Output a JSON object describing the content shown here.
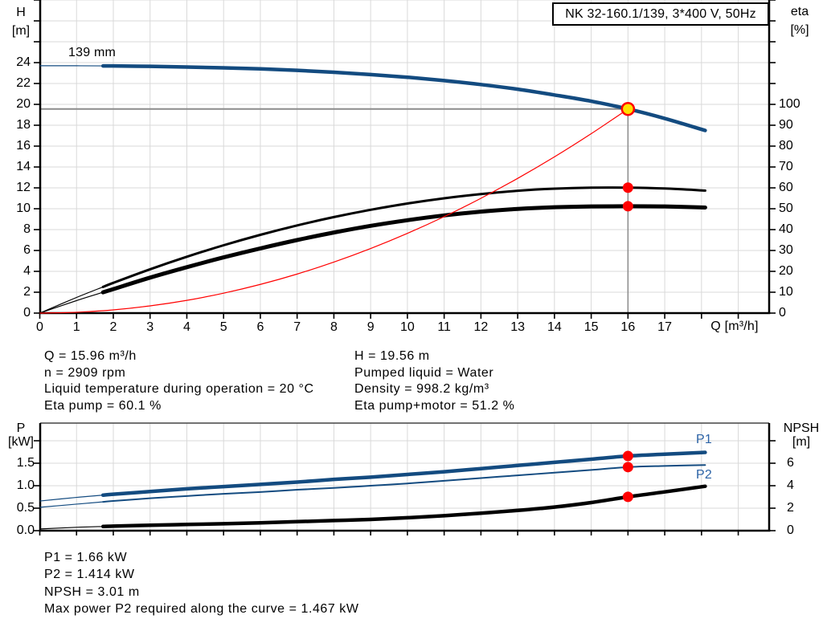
{
  "colors": {
    "curve_blue": "#134b80",
    "label_blue": "#2b62a6",
    "red": "#ff0000",
    "duty_fill": "#ffe000",
    "grid": "#d9d9d9",
    "guide": "#8c8c8c",
    "axis": "#000000"
  },
  "info_top_left": {
    "lines": [
      "Q = 15.96 m³/h",
      "n = 2909 rpm",
      "Liquid temperature during operation = 20 °C",
      "Eta pump = 60.1 %"
    ]
  },
  "info_top_right": {
    "lines": [
      "H = 19.56 m",
      "Pumped liquid = Water",
      "Density = 998.2 kg/m³",
      "Eta pump+motor = 51.2 %"
    ]
  },
  "info_bottom": {
    "lines": [
      "P1 = 1.66 kW",
      "P2 = 1.414 kW",
      "NPSH = 3.01 m",
      "Max power P2 required along the curve = 1.467 kW"
    ]
  },
  "chart_data": [
    {
      "type": "line",
      "title": "NK 32-160.1/139, 3*400 V, 50Hz",
      "x_axis": {
        "label": "Q [m³/h]",
        "ticks": [
          0,
          1,
          2,
          3,
          4,
          5,
          6,
          7,
          8,
          9,
          10,
          11,
          12,
          13,
          14,
          15,
          16,
          17
        ],
        "range": [
          0,
          19.8
        ],
        "grid": true
      },
      "y_left": {
        "name": "H",
        "unit": "[m]",
        "ticks": [
          0,
          2,
          4,
          6,
          8,
          10,
          12,
          14,
          16,
          18,
          20,
          22,
          24
        ],
        "range": [
          0,
          30
        ]
      },
      "y_right": {
        "name": "eta",
        "unit": "[%]",
        "ticks": [
          0,
          10,
          20,
          30,
          40,
          50,
          60,
          70,
          80,
          90,
          100
        ],
        "range": [
          0,
          150
        ]
      },
      "series": [
        {
          "name": "head-curve-139mm",
          "label": "139 mm",
          "axis": "left",
          "color": "#134b80",
          "width": 4.5,
          "thin_until": 1.72,
          "x": [
            0,
            1,
            2,
            3,
            4,
            5,
            6,
            7,
            8,
            9,
            10,
            11,
            12,
            13,
            14,
            15,
            16,
            17,
            18.1
          ],
          "y": [
            23.7,
            23.7,
            23.68,
            23.64,
            23.58,
            23.5,
            23.4,
            23.26,
            23.08,
            22.86,
            22.6,
            22.28,
            21.9,
            21.45,
            20.9,
            20.3,
            19.56,
            18.65,
            17.5
          ]
        },
        {
          "name": "eta-pump-curve",
          "axis": "right",
          "color": "#000000",
          "width": 3,
          "thin_until": 1.72,
          "x": [
            0,
            1,
            2,
            3,
            4,
            5,
            6,
            7,
            8,
            9,
            10,
            11,
            12,
            13,
            14,
            15,
            16,
            17,
            18.1
          ],
          "y": [
            0,
            7.5,
            14.5,
            21,
            27,
            32.5,
            37.5,
            42,
            46,
            49.5,
            52.5,
            55,
            57,
            58.6,
            59.6,
            60.1,
            60.1,
            59.7,
            58.7
          ]
        },
        {
          "name": "eta-pump-motor-curve",
          "axis": "right",
          "color": "#000000",
          "width": 5,
          "thin_until": 1.72,
          "x": [
            0,
            1,
            2,
            3,
            4,
            5,
            6,
            7,
            8,
            9,
            10,
            11,
            12,
            13,
            14,
            15,
            16,
            17,
            18.1
          ],
          "y": [
            0,
            6,
            11.5,
            17,
            22,
            26.7,
            31,
            35,
            38.6,
            41.8,
            44.5,
            46.8,
            48.6,
            49.9,
            50.7,
            51.1,
            51.2,
            51.1,
            50.6
          ]
        },
        {
          "name": "system-curve",
          "axis": "left",
          "color": "#ff0000",
          "width": 1.2,
          "x": [
            0,
            1,
            2,
            3,
            4,
            5,
            6,
            7,
            8,
            9,
            10,
            11,
            12,
            13,
            14,
            15,
            16
          ],
          "y": [
            0,
            0.08,
            0.31,
            0.69,
            1.22,
            1.91,
            2.75,
            3.74,
            4.89,
            6.19,
            7.64,
            9.24,
            11.0,
            12.91,
            14.97,
            17.19,
            19.56
          ]
        }
      ],
      "markers": [
        {
          "name": "duty-point",
          "axis": "left",
          "q": 16,
          "v": 19.56,
          "style": "duty"
        },
        {
          "name": "eta-pump-point",
          "axis": "right",
          "q": 16,
          "v": 60.1,
          "style": "red"
        },
        {
          "name": "eta-pump-motor-point",
          "axis": "right",
          "q": 16,
          "v": 51.2,
          "style": "red"
        }
      ],
      "guides": {
        "q": 16,
        "h": 19.56
      }
    },
    {
      "type": "line",
      "x_axis": {
        "label": "",
        "ticks": [],
        "range": [
          0,
          19.8
        ],
        "grid": true
      },
      "y_left": {
        "name": "P",
        "unit": "[kW]",
        "ticks": [
          0,
          0.5,
          1,
          1.5
        ],
        "tick_labels": [
          "0.0",
          "0.5",
          "1.0",
          "1.5"
        ],
        "range": [
          0,
          2.4
        ]
      },
      "y_right": {
        "name": "NPSH",
        "unit": "[m]",
        "ticks": [
          0,
          2,
          4,
          6
        ],
        "range": [
          0,
          9.6
        ]
      },
      "series": [
        {
          "name": "p1-curve",
          "label": "P1",
          "axis": "left",
          "color": "#134b80",
          "width": 4.5,
          "thin_until": 1.72,
          "x": [
            0,
            1,
            2,
            3,
            4,
            5,
            6,
            7,
            8,
            9,
            10,
            11,
            12,
            13,
            14,
            15,
            16,
            17,
            18.1
          ],
          "y": [
            0.66,
            0.74,
            0.81,
            0.87,
            0.93,
            0.98,
            1.03,
            1.08,
            1.14,
            1.19,
            1.25,
            1.31,
            1.38,
            1.45,
            1.52,
            1.59,
            1.66,
            1.7,
            1.74
          ]
        },
        {
          "name": "p2-curve",
          "label": "P2",
          "axis": "left",
          "color": "#134b80",
          "width": 2,
          "thin_until": 1.72,
          "x": [
            0,
            1,
            2,
            3,
            4,
            5,
            6,
            7,
            8,
            9,
            10,
            11,
            12,
            13,
            14,
            15,
            16,
            17,
            18.1
          ],
          "y": [
            0.52,
            0.59,
            0.66,
            0.72,
            0.77,
            0.82,
            0.86,
            0.91,
            0.95,
            1.0,
            1.05,
            1.11,
            1.17,
            1.23,
            1.29,
            1.35,
            1.414,
            1.44,
            1.46
          ]
        },
        {
          "name": "npsh-curve",
          "axis": "right",
          "color": "#000000",
          "width": 4.5,
          "thin_until": 1.72,
          "x": [
            0,
            1,
            2,
            3,
            4,
            5,
            6,
            7,
            8,
            9,
            10,
            11,
            12,
            13,
            14,
            15,
            16,
            17,
            18.1
          ],
          "y": [
            0.15,
            0.3,
            0.4,
            0.48,
            0.55,
            0.62,
            0.7,
            0.8,
            0.9,
            1.0,
            1.15,
            1.33,
            1.55,
            1.8,
            2.1,
            2.5,
            3.01,
            3.45,
            3.95
          ]
        }
      ],
      "markers": [
        {
          "name": "p1-point",
          "axis": "left",
          "q": 16,
          "v": 1.66,
          "style": "red"
        },
        {
          "name": "p2-point",
          "axis": "left",
          "q": 16,
          "v": 1.414,
          "style": "red"
        },
        {
          "name": "npsh-point",
          "axis": "right",
          "q": 16,
          "v": 3.01,
          "style": "red"
        }
      ]
    }
  ]
}
